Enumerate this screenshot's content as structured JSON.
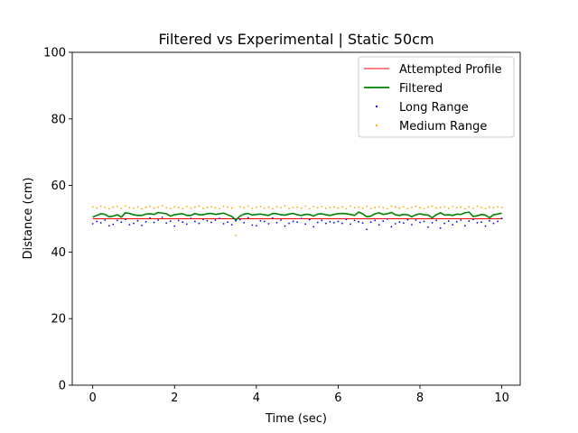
{
  "chart_data": {
    "type": "line",
    "title": "Filtered vs Experimental | Static 50cm",
    "xlabel": "Time (sec)",
    "ylabel": "Distance (cm)",
    "xlim": [
      -0.5,
      10.45
    ],
    "ylim": [
      0,
      100
    ],
    "xticks": [
      0,
      2,
      4,
      6,
      8,
      10
    ],
    "xtick_labels": [
      "0",
      "2",
      "4",
      "6",
      "8",
      "10"
    ],
    "yticks": [
      0,
      20,
      40,
      60,
      80,
      100
    ],
    "ytick_labels": [
      "0",
      "20",
      "40",
      "60",
      "80",
      "100"
    ],
    "grid": false,
    "legend_position": "upper right",
    "series": [
      {
        "name": "Attempted Profile",
        "kind": "line",
        "color": "#ff0000",
        "x": [
          0,
          10
        ],
        "y": [
          50,
          50
        ]
      },
      {
        "name": "Filtered",
        "kind": "line",
        "color": "#008000",
        "x": [
          0.0,
          0.1,
          0.2,
          0.3,
          0.4,
          0.5,
          0.6,
          0.7,
          0.8,
          0.9,
          1.0,
          1.1,
          1.2,
          1.3,
          1.4,
          1.5,
          1.6,
          1.7,
          1.8,
          1.9,
          2.0,
          2.1,
          2.2,
          2.3,
          2.4,
          2.5,
          2.6,
          2.7,
          2.8,
          2.9,
          3.0,
          3.1,
          3.2,
          3.3,
          3.4,
          3.5,
          3.6,
          3.7,
          3.8,
          3.9,
          4.0,
          4.1,
          4.2,
          4.3,
          4.4,
          4.5,
          4.6,
          4.7,
          4.8,
          4.9,
          5.0,
          5.1,
          5.2,
          5.3,
          5.4,
          5.5,
          5.6,
          5.7,
          5.8,
          5.9,
          6.0,
          6.1,
          6.2,
          6.3,
          6.4,
          6.5,
          6.6,
          6.7,
          6.8,
          6.9,
          7.0,
          7.1,
          7.2,
          7.3,
          7.4,
          7.5,
          7.6,
          7.7,
          7.8,
          7.9,
          8.0,
          8.1,
          8.2,
          8.3,
          8.4,
          8.5,
          8.6,
          8.7,
          8.8,
          8.9,
          9.0,
          9.1,
          9.2,
          9.3,
          9.4,
          9.5,
          9.6,
          9.7,
          9.8,
          9.9,
          10.0
        ],
        "y": [
          50.5,
          51.0,
          51.5,
          51.3,
          50.6,
          50.8,
          51.2,
          50.5,
          51.8,
          51.6,
          51.2,
          51.0,
          51.0,
          51.4,
          51.5,
          51.3,
          51.9,
          51.7,
          51.5,
          50.8,
          51.2,
          51.4,
          51.5,
          51.0,
          51.0,
          51.6,
          51.2,
          51.2,
          51.5,
          51.6,
          51.3,
          51.5,
          51.7,
          51.2,
          50.7,
          49.6,
          50.8,
          51.4,
          51.6,
          51.1,
          51.3,
          51.4,
          51.2,
          51.0,
          51.6,
          51.5,
          51.2,
          51.1,
          51.4,
          51.6,
          51.2,
          51.0,
          51.3,
          51.3,
          50.8,
          51.4,
          51.5,
          51.2,
          51.0,
          51.3,
          51.5,
          51.6,
          51.5,
          51.3,
          51.0,
          52.0,
          51.5,
          50.6,
          50.8,
          51.5,
          51.8,
          51.3,
          51.5,
          51.9,
          51.2,
          51.0,
          51.3,
          51.2,
          50.6,
          51.2,
          51.5,
          51.2,
          51.1,
          50.3,
          51.2,
          51.8,
          51.1,
          51.2,
          51.0,
          51.4,
          51.3,
          51.8,
          52.0,
          50.7,
          50.9,
          51.3,
          51.1,
          50.3,
          51.2,
          51.4,
          51.7
        ]
      },
      {
        "name": "Long Range",
        "kind": "scatter",
        "color": "#0000ff",
        "x": [
          0.0,
          0.1,
          0.2,
          0.3,
          0.4,
          0.5,
          0.6,
          0.7,
          0.8,
          0.9,
          1.0,
          1.1,
          1.2,
          1.3,
          1.4,
          1.5,
          1.6,
          1.7,
          1.8,
          1.9,
          2.0,
          2.1,
          2.2,
          2.3,
          2.4,
          2.5,
          2.6,
          2.7,
          2.8,
          2.9,
          3.0,
          3.1,
          3.2,
          3.3,
          3.4,
          3.5,
          3.6,
          3.7,
          3.8,
          3.9,
          4.0,
          4.1,
          4.2,
          4.3,
          4.4,
          4.5,
          4.6,
          4.7,
          4.8,
          4.9,
          5.0,
          5.1,
          5.2,
          5.3,
          5.4,
          5.5,
          5.6,
          5.7,
          5.8,
          5.9,
          6.0,
          6.1,
          6.2,
          6.3,
          6.4,
          6.5,
          6.6,
          6.7,
          6.8,
          6.9,
          7.0,
          7.1,
          7.2,
          7.3,
          7.4,
          7.5,
          7.6,
          7.7,
          7.8,
          7.9,
          8.0,
          8.1,
          8.2,
          8.3,
          8.4,
          8.5,
          8.6,
          8.7,
          8.8,
          8.9,
          9.0,
          9.1,
          9.2,
          9.3,
          9.4,
          9.5,
          9.6,
          9.7,
          9.8,
          9.9,
          10.0
        ],
        "y": [
          48.5,
          49.2,
          48.8,
          49.6,
          47.9,
          48.3,
          49.5,
          49.0,
          49.8,
          48.2,
          48.6,
          49.4,
          48.0,
          49.1,
          50.2,
          48.9,
          49.6,
          50.4,
          48.7,
          49.3,
          47.8,
          49.5,
          49.0,
          48.4,
          50.1,
          49.2,
          48.6,
          49.8,
          49.4,
          48.9,
          49.6,
          50.1,
          48.5,
          49.0,
          48.2,
          49.4,
          49.8,
          48.8,
          50.3,
          48.1,
          47.9,
          49.4,
          49.2,
          48.5,
          50.2,
          48.8,
          49.6,
          47.8,
          48.6,
          49.2,
          49.0,
          50.1,
          48.4,
          49.7,
          47.6,
          48.9,
          49.5,
          48.6,
          49.1,
          48.8,
          49.2,
          48.6,
          49.8,
          48.4,
          49.5,
          49.1,
          48.7,
          46.8,
          49.0,
          49.5,
          48.2,
          49.3,
          49.9,
          47.6,
          48.5,
          49.0,
          48.7,
          49.7,
          48.2,
          49.6,
          48.9,
          49.2,
          47.5,
          48.8,
          49.5,
          47.2,
          48.6,
          49.3,
          48.2,
          49.1,
          49.6,
          47.9,
          49.3,
          49.8,
          48.8,
          49.0,
          47.8,
          49.4,
          48.6,
          49.2,
          50.1
        ]
      },
      {
        "name": "Medium Range",
        "kind": "scatter",
        "color": "#ffa500",
        "x": [
          0.0,
          0.1,
          0.2,
          0.3,
          0.4,
          0.5,
          0.6,
          0.7,
          0.8,
          0.9,
          1.0,
          1.1,
          1.2,
          1.3,
          1.4,
          1.5,
          1.6,
          1.7,
          1.8,
          1.9,
          2.0,
          2.1,
          2.2,
          2.3,
          2.4,
          2.5,
          2.6,
          2.7,
          2.8,
          2.9,
          3.0,
          3.1,
          3.2,
          3.3,
          3.4,
          3.5,
          3.6,
          3.7,
          3.8,
          3.9,
          4.0,
          4.1,
          4.2,
          4.3,
          4.4,
          4.5,
          4.6,
          4.7,
          4.8,
          4.9,
          5.0,
          5.1,
          5.2,
          5.3,
          5.4,
          5.5,
          5.6,
          5.7,
          5.8,
          5.9,
          6.0,
          6.1,
          6.2,
          6.3,
          6.4,
          6.5,
          6.6,
          6.7,
          6.8,
          6.9,
          7.0,
          7.1,
          7.2,
          7.3,
          7.4,
          7.5,
          7.6,
          7.7,
          7.8,
          7.9,
          8.0,
          8.1,
          8.2,
          8.3,
          8.4,
          8.5,
          8.6,
          8.7,
          8.8,
          8.9,
          9.0,
          9.1,
          9.2,
          9.3,
          9.4,
          9.5,
          9.6,
          9.7,
          9.8,
          9.9,
          10.0
        ],
        "y": [
          53.6,
          53.2,
          53.8,
          53.4,
          53.0,
          53.5,
          53.7,
          53.1,
          53.9,
          53.3,
          53.2,
          53.6,
          53.0,
          53.4,
          53.8,
          53.2,
          53.5,
          53.9,
          53.3,
          53.1,
          53.6,
          53.4,
          53.0,
          53.7,
          53.2,
          53.5,
          53.8,
          53.1,
          53.4,
          53.6,
          53.3,
          53.0,
          53.7,
          53.5,
          53.2,
          45.0,
          53.6,
          53.3,
          53.8,
          53.1,
          53.4,
          53.7,
          53.2,
          53.5,
          53.0,
          53.6,
          53.3,
          53.9,
          53.1,
          53.4,
          53.5,
          53.2,
          53.8,
          53.0,
          53.6,
          53.3,
          53.7,
          53.1,
          53.4,
          53.5,
          53.2,
          53.6,
          53.0,
          53.8,
          53.3,
          53.5,
          53.2,
          53.7,
          53.1,
          53.4,
          53.6,
          53.3,
          53.0,
          53.8,
          53.5,
          53.2,
          53.6,
          53.1,
          53.4,
          53.7,
          53.3,
          53.0,
          53.5,
          53.8,
          53.2,
          53.4,
          53.6,
          53.1,
          53.7,
          53.3,
          53.5,
          53.0,
          53.6,
          53.2,
          53.8,
          53.4,
          53.1,
          53.5,
          53.3,
          53.6,
          53.4
        ]
      }
    ]
  }
}
